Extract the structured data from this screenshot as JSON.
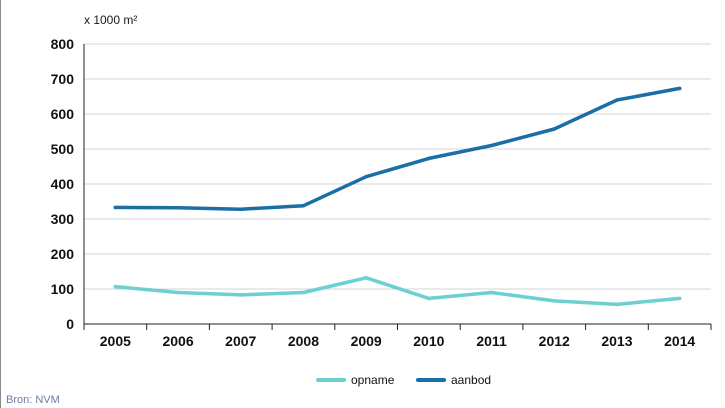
{
  "chart_data": {
    "type": "line",
    "title": "",
    "ylabel": "x 1000 m²",
    "xlabel": "",
    "categories": [
      "2005",
      "2006",
      "2007",
      "2008",
      "2009",
      "2010",
      "2011",
      "2012",
      "2013",
      "2014"
    ],
    "ylim": [
      0,
      800
    ],
    "yticks": [
      0,
      100,
      200,
      300,
      400,
      500,
      600,
      700,
      800
    ],
    "grid": true,
    "legend_position": "bottom-center",
    "series": [
      {
        "name": "opname",
        "color": "#6ccfd1",
        "values": [
          107,
          90,
          83,
          90,
          132,
          73,
          90,
          66,
          56,
          73
        ]
      },
      {
        "name": "aanbod",
        "color": "#1a6fa7",
        "values": [
          333,
          332,
          328,
          338,
          421,
          473,
          510,
          557,
          640,
          673
        ]
      }
    ],
    "source": "Bron: NVM"
  }
}
